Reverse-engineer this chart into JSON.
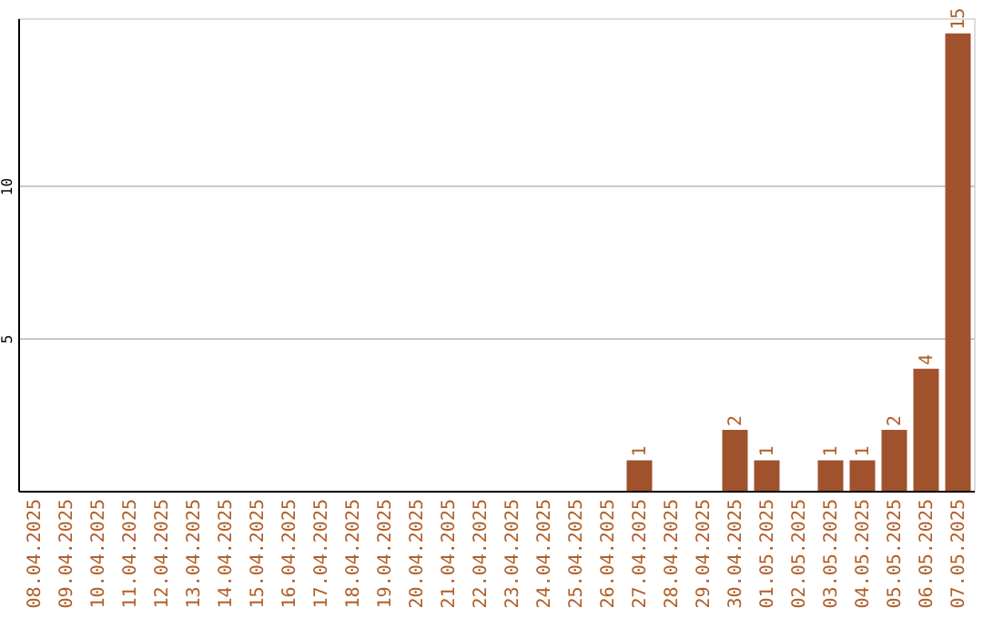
{
  "chart_data": {
    "type": "bar",
    "categories": [
      "08.04.2025",
      "09.04.2025",
      "10.04.2025",
      "11.04.2025",
      "12.04.2025",
      "13.04.2025",
      "14.04.2025",
      "15.04.2025",
      "16.04.2025",
      "17.04.2025",
      "18.04.2025",
      "19.04.2025",
      "20.04.2025",
      "21.04.2025",
      "22.04.2025",
      "23.04.2025",
      "24.04.2025",
      "25.04.2025",
      "26.04.2025",
      "27.04.2025",
      "28.04.2025",
      "29.04.2025",
      "30.04.2025",
      "01.05.2025",
      "02.05.2025",
      "03.05.2025",
      "04.05.2025",
      "05.05.2025",
      "06.05.2025",
      "07.05.2025"
    ],
    "values": [
      0,
      0,
      0,
      0,
      0,
      0,
      0,
      0,
      0,
      0,
      0,
      0,
      0,
      0,
      0,
      0,
      0,
      0,
      0,
      1,
      0,
      0,
      2,
      1,
      0,
      1,
      1,
      2,
      4,
      15
    ],
    "value_labels": [
      null,
      null,
      null,
      null,
      null,
      null,
      null,
      null,
      null,
      null,
      null,
      null,
      null,
      null,
      null,
      null,
      null,
      null,
      null,
      "1",
      null,
      null,
      "2",
      "1",
      null,
      "1",
      "1",
      "2",
      "4",
      "15"
    ],
    "color": "#a0522d",
    "ylim": [
      0,
      15.5
    ],
    "yticks": [
      5,
      10
    ],
    "grid": "y"
  }
}
